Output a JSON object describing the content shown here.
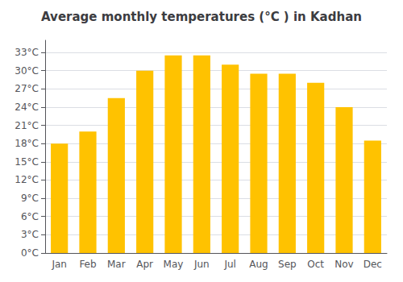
{
  "chart_data": {
    "type": "bar",
    "title": "Average monthly temperatures (°C ) in Kadhan",
    "categories": [
      "Jan",
      "Feb",
      "Mar",
      "Apr",
      "May",
      "Jun",
      "Jul",
      "Aug",
      "Sep",
      "Oct",
      "Nov",
      "Dec"
    ],
    "values": [
      18,
      20,
      25.5,
      30,
      32.5,
      32.5,
      31,
      29.5,
      29.5,
      28,
      24,
      18.5
    ],
    "color": "#FFC200",
    "ylim": [
      0,
      35
    ],
    "yticks": [
      {
        "value": 0,
        "label": "0°C"
      },
      {
        "value": 3,
        "label": "3°C"
      },
      {
        "value": 6,
        "label": "6°C"
      },
      {
        "value": 9,
        "label": "9°C"
      },
      {
        "value": 12,
        "label": "12°C"
      },
      {
        "value": 15,
        "label": "15°C"
      },
      {
        "value": 18,
        "label": "18°C"
      },
      {
        "value": 21,
        "label": "21°C"
      },
      {
        "value": 24,
        "label": "24°C"
      },
      {
        "value": 27,
        "label": "27°C"
      },
      {
        "value": 30,
        "label": "30°C"
      },
      {
        "value": 33,
        "label": "33°C"
      }
    ],
    "grid": true
  }
}
